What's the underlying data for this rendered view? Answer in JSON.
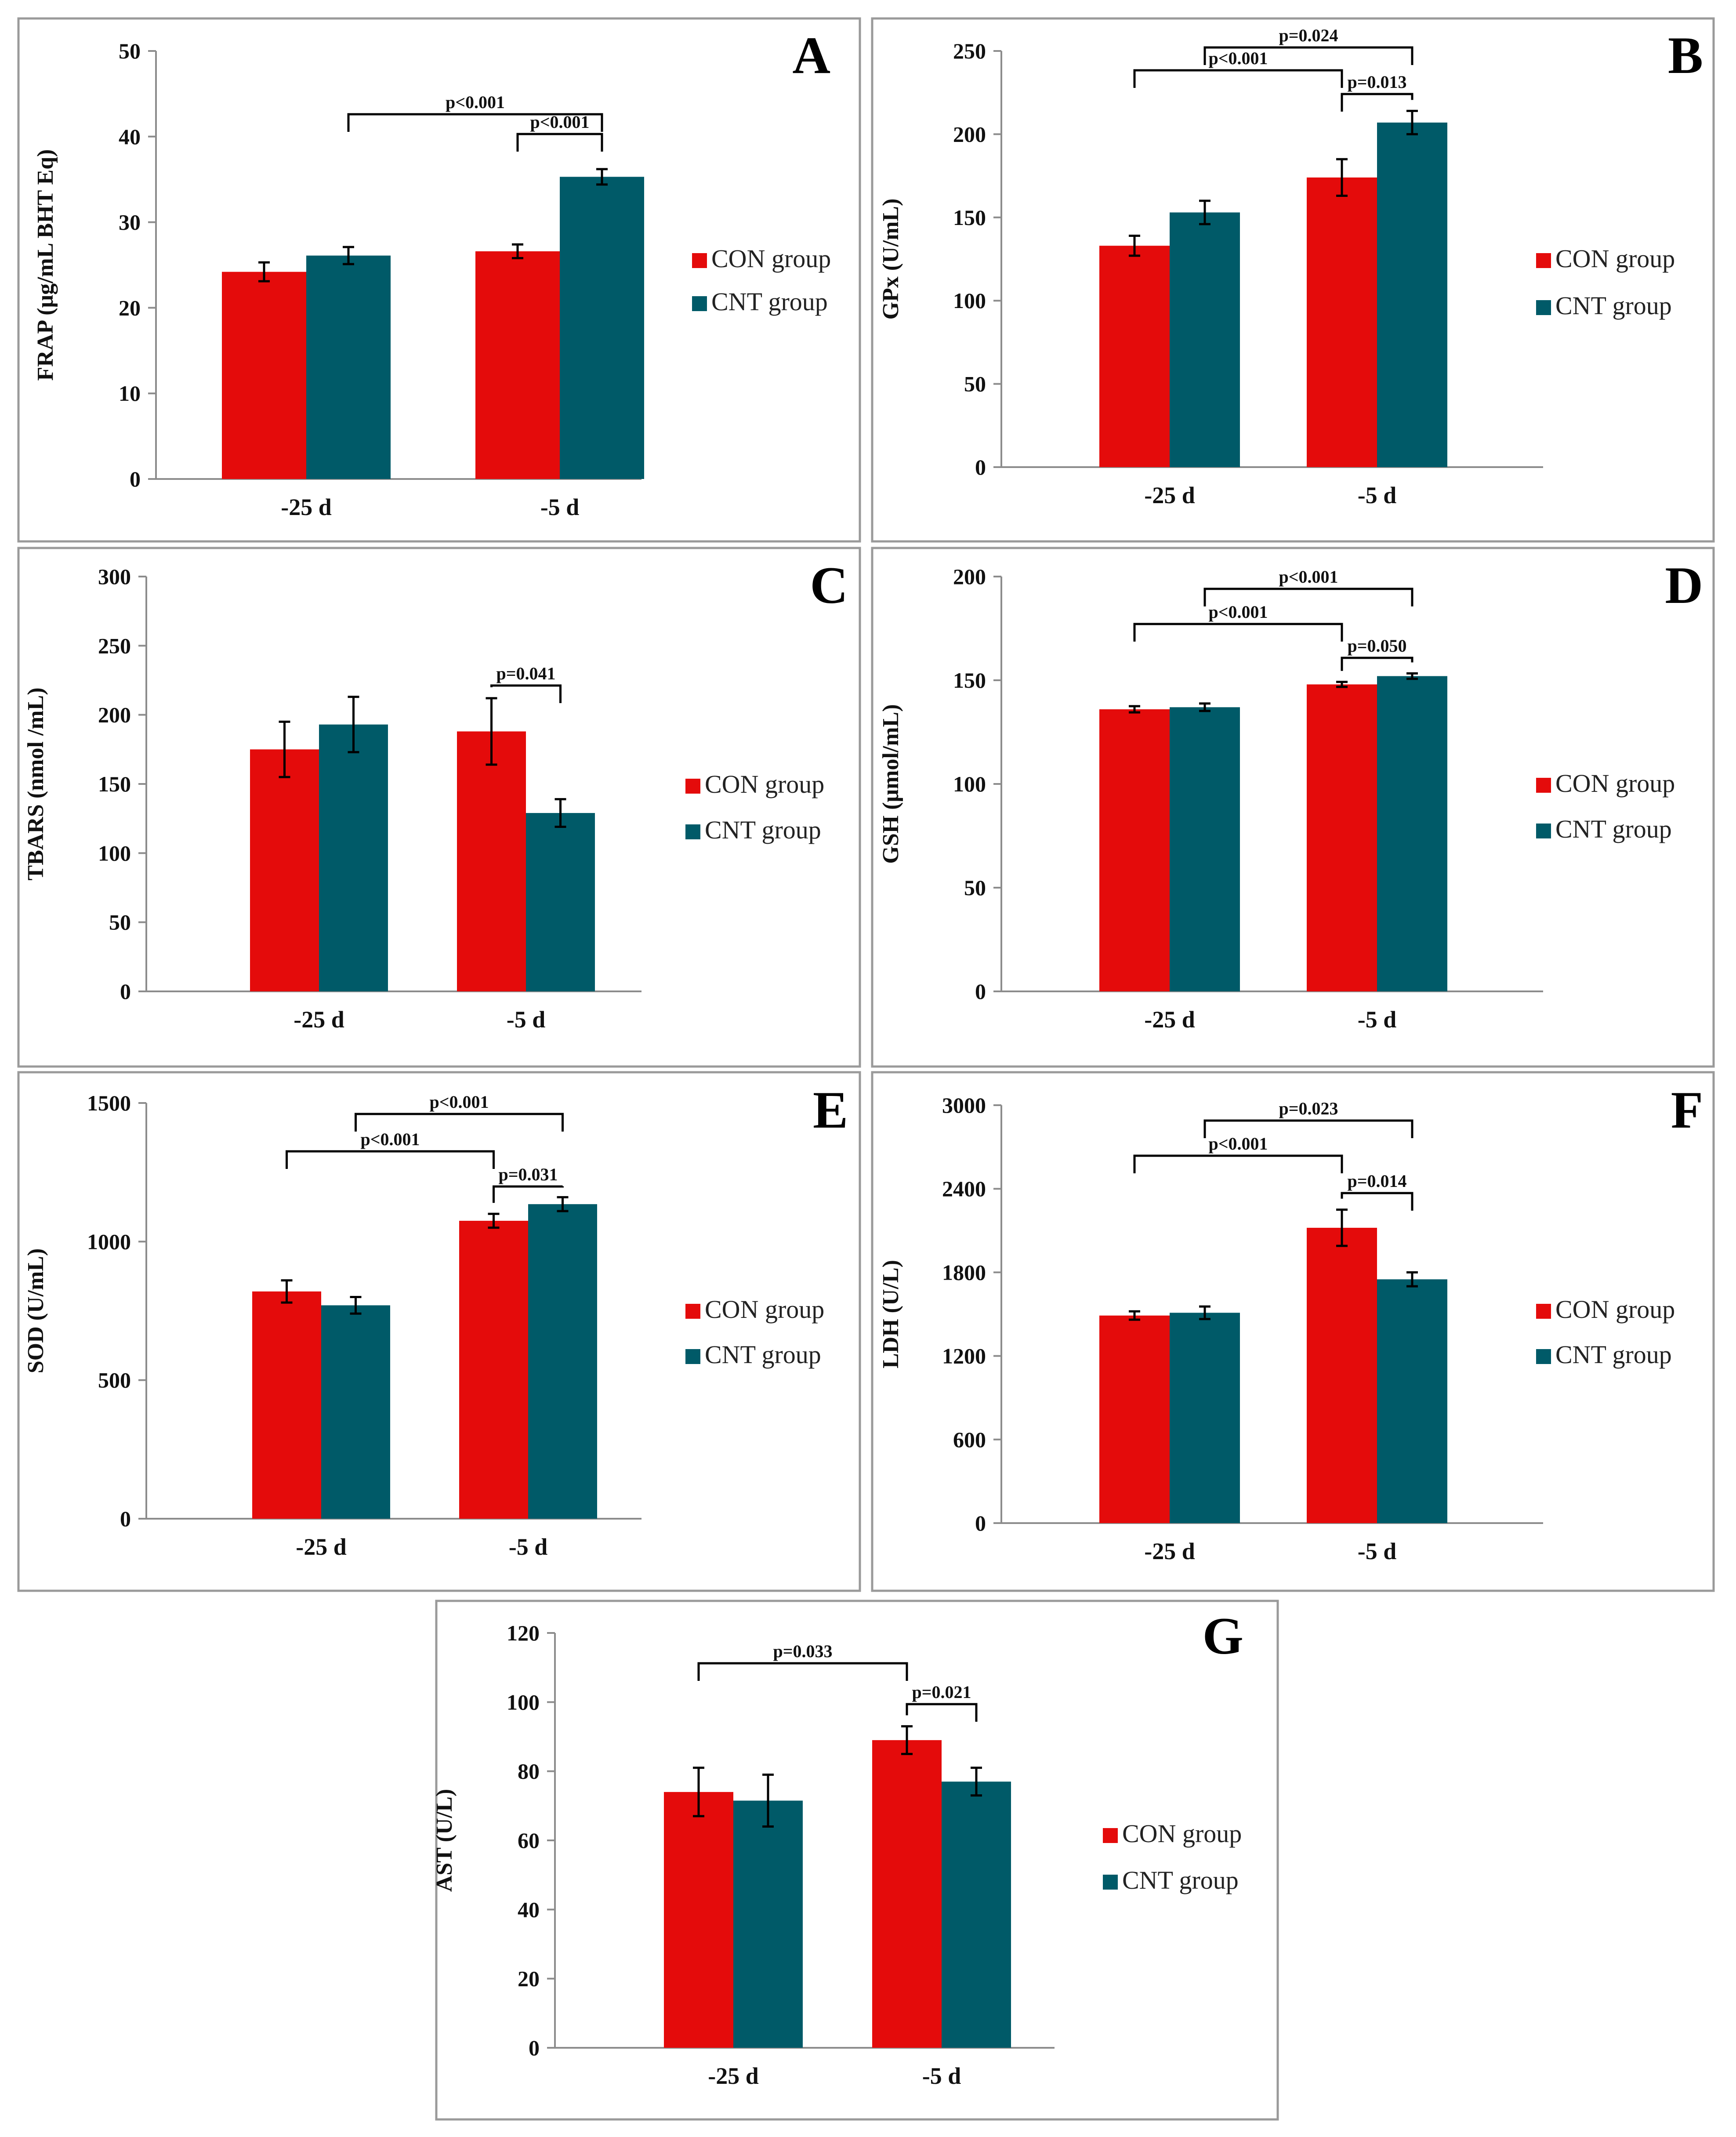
{
  "colors": {
    "con": "#E40B0B",
    "cnt": "#005A68",
    "frame": "#9A9A9A",
    "axis": "#8C8C8C",
    "bracket": "#000000"
  },
  "legend": {
    "con": "CON group",
    "cnt": "CNT group"
  },
  "chart_data": [
    {
      "panel": "A",
      "type": "bar",
      "ylabel": "FRAP (μg/mL BHT Eq)",
      "categories": [
        "-25 d",
        "-5 d"
      ],
      "ylim": [
        0,
        50
      ],
      "yticks": [
        "0",
        "10",
        "20",
        "30",
        "40",
        "50"
      ],
      "series": [
        {
          "name": "CON group",
          "values": [
            24.2,
            26.6
          ],
          "errors": [
            1.1,
            0.8
          ]
        },
        {
          "name": "CNT group",
          "values": [
            26.1,
            35.3
          ],
          "errors": [
            1.0,
            0.9
          ]
        }
      ],
      "comparisons": [
        {
          "label": "p<0.001",
          "from": "CNT -25 d",
          "to": "CNT -5 d"
        },
        {
          "label": "p<0.001",
          "from": "CON -5 d",
          "to": "CNT -5 d"
        }
      ]
    },
    {
      "panel": "B",
      "type": "bar",
      "ylabel": "GPx (U/mL)",
      "categories": [
        "-25 d",
        "-5 d"
      ],
      "ylim": [
        0,
        250
      ],
      "yticks": [
        "0",
        "50",
        "100",
        "150",
        "200",
        "250"
      ],
      "series": [
        {
          "name": "CON group",
          "values": [
            133,
            174
          ],
          "errors": [
            6,
            11
          ]
        },
        {
          "name": "CNT group",
          "values": [
            153,
            207
          ],
          "errors": [
            7,
            7
          ]
        }
      ],
      "comparisons": [
        {
          "label": "p=0.024",
          "from": "CNT -25 d",
          "to": "CNT -5 d"
        },
        {
          "label": "p<0.001",
          "from": "CON -25 d",
          "to": "CON -5 d"
        },
        {
          "label": "p=0.013",
          "from": "CON -5 d",
          "to": "CNT -5 d"
        }
      ]
    },
    {
      "panel": "C",
      "type": "bar",
      "ylabel": "TBARS (nmol /mL)",
      "categories": [
        "-25 d",
        "-5 d"
      ],
      "ylim": [
        0,
        300
      ],
      "yticks": [
        "0",
        "50",
        "100",
        "150",
        "200",
        "250",
        "300"
      ],
      "series": [
        {
          "name": "CON group",
          "values": [
            175,
            188
          ],
          "errors": [
            20,
            24
          ]
        },
        {
          "name": "CNT group",
          "values": [
            193,
            129
          ],
          "errors": [
            20,
            10
          ]
        }
      ],
      "comparisons": [
        {
          "label": "p=0.041",
          "from": "CON -5 d",
          "to": "CNT -5 d"
        }
      ]
    },
    {
      "panel": "D",
      "type": "bar",
      "ylabel": "GSH (μmol/mL)",
      "categories": [
        "-25 d",
        "-5 d"
      ],
      "ylim": [
        0,
        200
      ],
      "yticks": [
        "0",
        "50",
        "100",
        "150",
        "200"
      ],
      "series": [
        {
          "name": "CON group",
          "values": [
            136,
            148
          ],
          "errors": [
            1.5,
            1.2
          ]
        },
        {
          "name": "CNT group",
          "values": [
            137,
            152
          ],
          "errors": [
            1.8,
            1.3
          ]
        }
      ],
      "comparisons": [
        {
          "label": "p<0.001",
          "from": "CNT -25 d",
          "to": "CNT -5 d"
        },
        {
          "label": "p<0.001",
          "from": "CON -25 d",
          "to": "CON -5 d"
        },
        {
          "label": "p=0.050",
          "from": "CON -5 d",
          "to": "CNT -5 d"
        }
      ]
    },
    {
      "panel": "E",
      "type": "bar",
      "ylabel": "SOD (U/mL)",
      "categories": [
        "-25 d",
        "-5 d"
      ],
      "ylim": [
        0,
        1500
      ],
      "yticks": [
        "0",
        "500",
        "1000",
        "1500"
      ],
      "series": [
        {
          "name": "CON group",
          "values": [
            820,
            1075
          ],
          "errors": [
            40,
            25
          ]
        },
        {
          "name": "CNT group",
          "values": [
            770,
            1135
          ],
          "errors": [
            30,
            25
          ]
        }
      ],
      "comparisons": [
        {
          "label": "p<0.001",
          "from": "CNT -25 d",
          "to": "CNT -5 d"
        },
        {
          "label": "p<0.001",
          "from": "CON -25 d",
          "to": "CON -5 d"
        },
        {
          "label": "p=0.031",
          "from": "CON -5 d",
          "to": "CNT -5 d"
        }
      ]
    },
    {
      "panel": "F",
      "type": "bar",
      "ylabel": "LDH (U/L)",
      "categories": [
        "-25 d",
        "-5 d"
      ],
      "ylim": [
        0,
        3000
      ],
      "yticks": [
        "0",
        "600",
        "1200",
        "1800",
        "2400",
        "3000"
      ],
      "series": [
        {
          "name": "CON group",
          "values": [
            1490,
            2120
          ],
          "errors": [
            30,
            130
          ]
        },
        {
          "name": "CNT group",
          "values": [
            1510,
            1750
          ],
          "errors": [
            45,
            50
          ]
        }
      ],
      "comparisons": [
        {
          "label": "p=0.023",
          "from": "CNT -25 d",
          "to": "CNT -5 d"
        },
        {
          "label": "p<0.001",
          "from": "CON -25 d",
          "to": "CON -5 d"
        },
        {
          "label": "p=0.014",
          "from": "CON -5 d",
          "to": "CNT -5 d"
        }
      ]
    },
    {
      "panel": "G",
      "type": "bar",
      "ylabel": "AST (U/L)",
      "categories": [
        "-25 d",
        "-5 d"
      ],
      "ylim": [
        0,
        120
      ],
      "yticks": [
        "0",
        "20",
        "40",
        "60",
        "80",
        "100",
        "120"
      ],
      "series": [
        {
          "name": "CON group",
          "values": [
            74,
            89
          ],
          "errors": [
            7,
            4
          ]
        },
        {
          "name": "CNT group",
          "values": [
            71.5,
            77
          ],
          "errors": [
            7.5,
            4
          ]
        }
      ],
      "comparisons": [
        {
          "label": "p=0.033",
          "from": "CON -25 d",
          "to": "CON -5 d"
        },
        {
          "label": "p=0.021",
          "from": "CON -5 d",
          "to": "CNT -5 d"
        }
      ]
    }
  ]
}
